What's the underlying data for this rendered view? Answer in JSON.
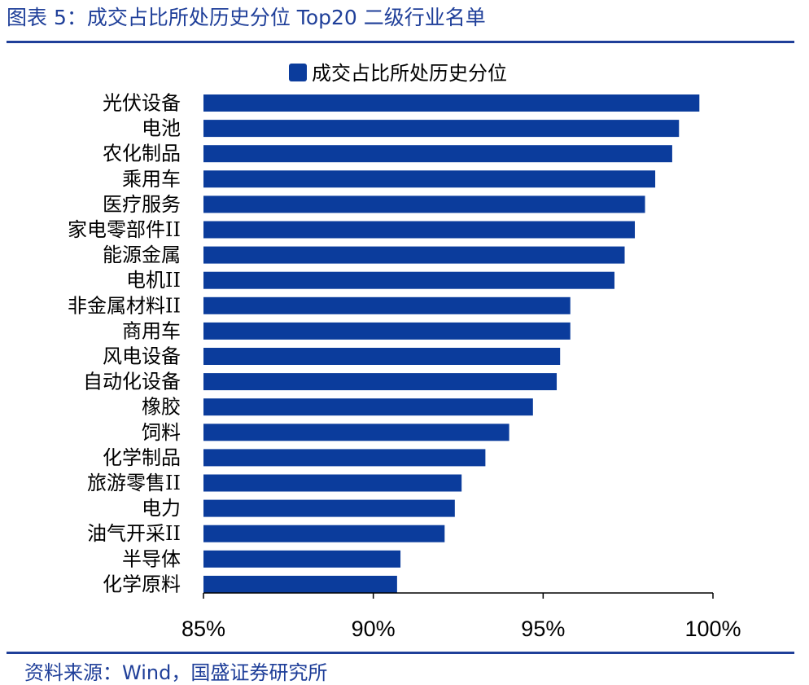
{
  "header": {
    "title": "图表 5：成交占比所处历史分位 Top20 二级行业名单"
  },
  "footer": {
    "source": "资料来源：Wind，国盛证券研究所"
  },
  "colors": {
    "accent": "#1f3f99",
    "bar": "#0b3c9c"
  },
  "chart_data": {
    "type": "bar",
    "orientation": "horizontal",
    "title": "",
    "xlabel": "",
    "ylabel": "",
    "legend": {
      "entries": [
        "成交占比所处历史分位"
      ],
      "placement": "top-center"
    },
    "categories": [
      "光伏设备",
      "电池",
      "农化制品",
      "乘用车",
      "医疗服务",
      "家电零部件II",
      "能源金属",
      "电机II",
      "非金属材料II",
      "商用车",
      "风电设备",
      "自动化设备",
      "橡胶",
      "饲料",
      "化学制品",
      "旅游零售II",
      "电力",
      "油气开采II",
      "半导体",
      "化学原料"
    ],
    "series": [
      {
        "name": "成交占比所处历史分位",
        "values": [
          99.6,
          99.0,
          98.8,
          98.3,
          98.0,
          97.7,
          97.4,
          97.1,
          95.8,
          95.8,
          95.5,
          95.4,
          94.7,
          94.0,
          93.3,
          92.6,
          92.4,
          92.1,
          90.8,
          90.7
        ]
      }
    ],
    "xlim": [
      85,
      100
    ],
    "ticks": [
      85,
      90,
      95,
      100
    ],
    "tick_labels": [
      "85%",
      "90%",
      "95%",
      "100%"
    ],
    "grid": false
  }
}
